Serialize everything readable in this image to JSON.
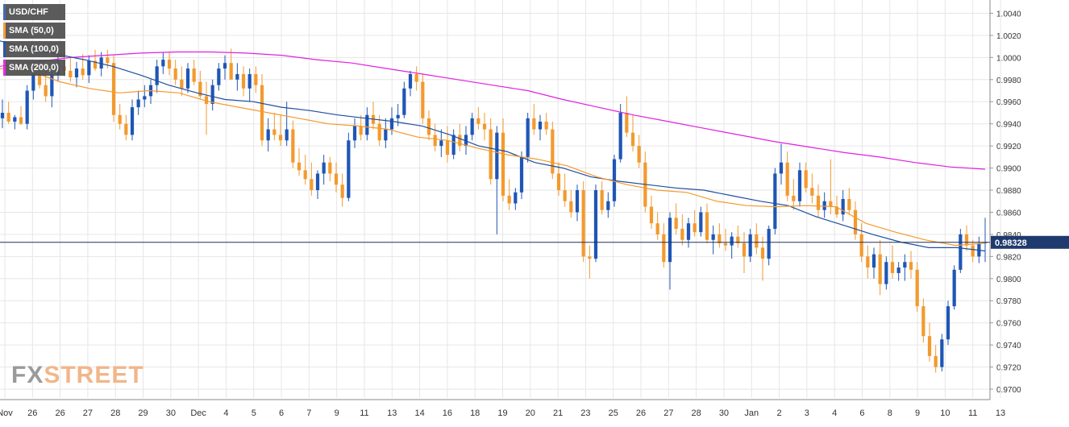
{
  "watermark": {
    "part1": "FX",
    "part2": "STREET"
  },
  "legend": [
    {
      "label": "USD/CHF",
      "color": "#3a5fb0"
    },
    {
      "label": "SMA (50,0)",
      "color": "#f39a2e"
    },
    {
      "label": "SMA (100,0)",
      "color": "#1d4e9e"
    },
    {
      "label": "SMA (200,0)",
      "color": "#e020e0"
    }
  ],
  "colors": {
    "bull": "#1f56b5",
    "bear": "#f39a2e",
    "sma50": "#f39a2e",
    "sma100": "#1d4e9e",
    "sma200": "#e020e0",
    "price_line": "#1c2f5a",
    "grid": "#e6e6e6"
  },
  "chart_data": {
    "type": "candlestick",
    "title": "USD/CHF",
    "current_price": "0.98328",
    "ylim": [
      0.9692,
      1.0052
    ],
    "y_ticks": [
      "1.0040",
      "1.0020",
      "1.0000",
      "0.9980",
      "0.9960",
      "0.9940",
      "0.9920",
      "0.9900",
      "0.9880",
      "0.9860",
      "0.9840",
      "0.9820",
      "0.9800",
      "0.9780",
      "0.9760",
      "0.9740",
      "0.9720",
      "0.9700"
    ],
    "x_ticks": [
      "Nov",
      "26",
      "26",
      "27",
      "28",
      "29",
      "30",
      "Dec",
      "4",
      "5",
      "6",
      "7",
      "9",
      "11",
      "13",
      "14",
      "16",
      "18",
      "19",
      "20",
      "21",
      "23",
      "25",
      "26",
      "27",
      "28",
      "30",
      "Jan",
      "2",
      "3",
      "4",
      "6",
      "8",
      "9",
      "10",
      "11",
      "13"
    ],
    "grid": true,
    "candles_ohlc": [
      [
        0.9945,
        0.9962,
        0.9936,
        0.995
      ],
      [
        0.995,
        0.996,
        0.994,
        0.9942
      ],
      [
        0.9942,
        0.9948,
        0.9935,
        0.9946
      ],
      [
        0.9946,
        0.9956,
        0.9939,
        0.994
      ],
      [
        0.994,
        0.9975,
        0.9935,
        0.997
      ],
      [
        0.997,
        0.999,
        0.9962,
        0.9985
      ],
      [
        0.9985,
        0.9996,
        0.9972,
        0.9975
      ],
      [
        0.9975,
        0.9988,
        0.996,
        0.9965
      ],
      [
        0.9965,
        0.999,
        0.9955,
        0.9985
      ],
      [
        0.9985,
        1.0002,
        0.9978,
        0.9992
      ],
      [
        0.9992,
        1.0005,
        0.9983,
        0.9988
      ],
      [
        0.9988,
        1.0,
        0.9978,
        0.9982
      ],
      [
        0.9982,
        0.9996,
        0.9973,
        0.999
      ],
      [
        0.999,
        1.0003,
        0.998,
        0.9984
      ],
      [
        0.9984,
        1.0002,
        0.9977,
        0.9997
      ],
      [
        0.9997,
        1.0007,
        0.9988,
        0.999
      ],
      [
        0.999,
        1.0005,
        0.9983,
        1.0
      ],
      [
        1.0,
        1.0007,
        0.999,
        0.9995
      ],
      [
        0.9995,
        1.0002,
        0.9942,
        0.9948
      ],
      [
        0.9948,
        0.9958,
        0.9935,
        0.994
      ],
      [
        0.994,
        0.9948,
        0.9925,
        0.993
      ],
      [
        0.993,
        0.9962,
        0.9925,
        0.9955
      ],
      [
        0.9955,
        0.997,
        0.9948,
        0.9962
      ],
      [
        0.9962,
        0.9975,
        0.9955,
        0.9965
      ],
      [
        0.9965,
        0.998,
        0.9958,
        0.9975
      ],
      [
        0.9975,
        0.9998,
        0.9968,
        0.9992
      ],
      [
        0.9992,
        1.0005,
        0.9985,
        0.9998
      ],
      [
        0.9998,
        1.0005,
        0.9984,
        0.999
      ],
      [
        0.999,
        0.9998,
        0.9975,
        0.998
      ],
      [
        0.998,
        0.9992,
        0.9965,
        0.9972
      ],
      [
        0.9972,
        0.9995,
        0.9968,
        0.999
      ],
      [
        0.999,
        0.9998,
        0.9975,
        0.9978
      ],
      [
        0.9978,
        0.9988,
        0.9962,
        0.9965
      ],
      [
        0.9965,
        0.9978,
        0.993,
        0.9958
      ],
      [
        0.9958,
        0.998,
        0.9952,
        0.9975
      ],
      [
        0.9975,
        0.9995,
        0.997,
        0.999
      ],
      [
        0.999,
        1.0002,
        0.998,
        0.9995
      ],
      [
        0.9995,
        1.0008,
        0.9985,
        0.998
      ],
      [
        0.998,
        0.9995,
        0.997,
        0.9985
      ],
      [
        0.9985,
        0.9992,
        0.9965,
        0.9972
      ],
      [
        0.9972,
        0.999,
        0.996,
        0.9985
      ],
      [
        0.9985,
        0.9992,
        0.9968,
        0.9975
      ],
      [
        0.9975,
        0.9985,
        0.992,
        0.9925
      ],
      [
        0.9925,
        0.9945,
        0.9915,
        0.9935
      ],
      [
        0.9935,
        0.995,
        0.9925,
        0.993
      ],
      [
        0.993,
        0.9948,
        0.992,
        0.9925
      ],
      [
        0.9925,
        0.996,
        0.992,
        0.9935
      ],
      [
        0.9935,
        0.9943,
        0.99,
        0.9905
      ],
      [
        0.9905,
        0.9918,
        0.9893,
        0.9898
      ],
      [
        0.9898,
        0.9912,
        0.9885,
        0.989
      ],
      [
        0.989,
        0.9905,
        0.9875,
        0.988
      ],
      [
        0.988,
        0.9898,
        0.9872,
        0.9895
      ],
      [
        0.9895,
        0.9912,
        0.9885,
        0.9905
      ],
      [
        0.9905,
        0.991,
        0.9888,
        0.9895
      ],
      [
        0.9895,
        0.9905,
        0.9878,
        0.9885
      ],
      [
        0.9885,
        0.9895,
        0.9865,
        0.9873
      ],
      [
        0.9873,
        0.9932,
        0.987,
        0.9925
      ],
      [
        0.9925,
        0.9945,
        0.9918,
        0.9938
      ],
      [
        0.9938,
        0.9948,
        0.9925,
        0.993
      ],
      [
        0.993,
        0.9955,
        0.9925,
        0.9948
      ],
      [
        0.9948,
        0.996,
        0.9935,
        0.994
      ],
      [
        0.994,
        0.9948,
        0.992,
        0.9925
      ],
      [
        0.9925,
        0.9945,
        0.9918,
        0.9935
      ],
      [
        0.9935,
        0.9955,
        0.993,
        0.9945
      ],
      [
        0.9945,
        0.9958,
        0.9938,
        0.9948
      ],
      [
        0.9948,
        0.9978,
        0.9945,
        0.9972
      ],
      [
        0.9972,
        0.9988,
        0.9965,
        0.9985
      ],
      [
        0.9985,
        0.9992,
        0.997,
        0.9978
      ],
      [
        0.9978,
        0.9985,
        0.994,
        0.9945
      ],
      [
        0.9945,
        0.9952,
        0.9925,
        0.993
      ],
      [
        0.993,
        0.994,
        0.9915,
        0.992
      ],
      [
        0.992,
        0.9935,
        0.991,
        0.9925
      ],
      [
        0.9925,
        0.9938,
        0.9905,
        0.9912
      ],
      [
        0.9912,
        0.9935,
        0.9908,
        0.993
      ],
      [
        0.993,
        0.994,
        0.9915,
        0.992
      ],
      [
        0.992,
        0.9938,
        0.9912,
        0.993
      ],
      [
        0.993,
        0.995,
        0.9925,
        0.9945
      ],
      [
        0.9945,
        0.9955,
        0.9935,
        0.994
      ],
      [
        0.994,
        0.995,
        0.9925,
        0.9935
      ],
      [
        0.9935,
        0.9945,
        0.9885,
        0.989
      ],
      [
        0.989,
        0.9938,
        0.984,
        0.9932
      ],
      [
        0.9932,
        0.9945,
        0.987,
        0.9875
      ],
      [
        0.9875,
        0.989,
        0.9862,
        0.9868
      ],
      [
        0.9868,
        0.9882,
        0.9862,
        0.9878
      ],
      [
        0.9878,
        0.9915,
        0.9872,
        0.991
      ],
      [
        0.991,
        0.995,
        0.9905,
        0.9945
      ],
      [
        0.9945,
        0.9958,
        0.993,
        0.9935
      ],
      [
        0.9935,
        0.9948,
        0.9925,
        0.9942
      ],
      [
        0.9942,
        0.995,
        0.993,
        0.9935
      ],
      [
        0.9935,
        0.9942,
        0.989,
        0.9895
      ],
      [
        0.9895,
        0.9905,
        0.9875,
        0.988
      ],
      [
        0.988,
        0.9895,
        0.9865,
        0.987
      ],
      [
        0.987,
        0.988,
        0.9855,
        0.986
      ],
      [
        0.986,
        0.9885,
        0.9852,
        0.988
      ],
      [
        0.988,
        0.9888,
        0.9815,
        0.982
      ],
      [
        0.982,
        0.983,
        0.98,
        0.9818
      ],
      [
        0.9818,
        0.9885,
        0.9815,
        0.988
      ],
      [
        0.988,
        0.9888,
        0.9858,
        0.9862
      ],
      [
        0.9862,
        0.9878,
        0.9855,
        0.987
      ],
      [
        0.987,
        0.9912,
        0.9865,
        0.9908
      ],
      [
        0.9908,
        0.9958,
        0.9905,
        0.995
      ],
      [
        0.995,
        0.9965,
        0.9928,
        0.9932
      ],
      [
        0.9932,
        0.9948,
        0.9915,
        0.992
      ],
      [
        0.992,
        0.993,
        0.99,
        0.9905
      ],
      [
        0.9905,
        0.9915,
        0.986,
        0.9865
      ],
      [
        0.9865,
        0.9875,
        0.9845,
        0.985
      ],
      [
        0.985,
        0.986,
        0.9835,
        0.984
      ],
      [
        0.984,
        0.985,
        0.981,
        0.9815
      ],
      [
        0.9815,
        0.986,
        0.979,
        0.9855
      ],
      [
        0.9855,
        0.9868,
        0.984,
        0.9845
      ],
      [
        0.9845,
        0.9858,
        0.983,
        0.9835
      ],
      [
        0.9835,
        0.9855,
        0.9828,
        0.985
      ],
      [
        0.985,
        0.9862,
        0.9838,
        0.9842
      ],
      [
        0.9842,
        0.9865,
        0.9838,
        0.986
      ],
      [
        0.986,
        0.9868,
        0.9832,
        0.9835
      ],
      [
        0.9835,
        0.9848,
        0.9822,
        0.984
      ],
      [
        0.984,
        0.985,
        0.9828,
        0.9832
      ],
      [
        0.9832,
        0.9845,
        0.9825,
        0.983
      ],
      [
        0.983,
        0.9842,
        0.9818,
        0.9838
      ],
      [
        0.9838,
        0.9848,
        0.9828,
        0.9832
      ],
      [
        0.9832,
        0.9842,
        0.9805,
        0.982
      ],
      [
        0.982,
        0.9845,
        0.9815,
        0.984
      ],
      [
        0.984,
        0.985,
        0.9822,
        0.9828
      ],
      [
        0.9828,
        0.9838,
        0.9798,
        0.9818
      ],
      [
        0.9818,
        0.9848,
        0.9812,
        0.9845
      ],
      [
        0.9845,
        0.99,
        0.984,
        0.9895
      ],
      [
        0.9895,
        0.9922,
        0.9885,
        0.9905
      ],
      [
        0.9905,
        0.9915,
        0.987,
        0.9875
      ],
      [
        0.9875,
        0.989,
        0.9862,
        0.987
      ],
      [
        0.987,
        0.9905,
        0.9865,
        0.9898
      ],
      [
        0.9898,
        0.9905,
        0.9878,
        0.9882
      ],
      [
        0.9882,
        0.9895,
        0.9868,
        0.9875
      ],
      [
        0.9875,
        0.9885,
        0.9855,
        0.9862
      ],
      [
        0.9862,
        0.9878,
        0.9855,
        0.987
      ],
      [
        0.987,
        0.9908,
        0.9858,
        0.9865
      ],
      [
        0.9865,
        0.9875,
        0.9855,
        0.9858
      ],
      [
        0.9858,
        0.988,
        0.9852,
        0.9872
      ],
      [
        0.9872,
        0.9882,
        0.9858,
        0.9862
      ],
      [
        0.9862,
        0.987,
        0.9835,
        0.984
      ],
      [
        0.984,
        0.985,
        0.9815,
        0.982
      ],
      [
        0.982,
        0.983,
        0.98,
        0.981
      ],
      [
        0.981,
        0.9828,
        0.98,
        0.9822
      ],
      [
        0.9822,
        0.9835,
        0.9785,
        0.9795
      ],
      [
        0.9795,
        0.982,
        0.979,
        0.9815
      ],
      [
        0.9815,
        0.983,
        0.98,
        0.9805
      ],
      [
        0.9805,
        0.9815,
        0.9798,
        0.981
      ],
      [
        0.981,
        0.9822,
        0.9798,
        0.9815
      ],
      [
        0.9815,
        0.9825,
        0.98,
        0.9808
      ],
      [
        0.9808,
        0.9815,
        0.977,
        0.9775
      ],
      [
        0.9775,
        0.9782,
        0.9742,
        0.9748
      ],
      [
        0.9748,
        0.976,
        0.9725,
        0.973
      ],
      [
        0.973,
        0.974,
        0.9715,
        0.972
      ],
      [
        0.972,
        0.975,
        0.9716,
        0.9745
      ],
      [
        0.9745,
        0.978,
        0.974,
        0.9775
      ],
      [
        0.9775,
        0.9812,
        0.9772,
        0.9808
      ],
      [
        0.9808,
        0.9845,
        0.9805,
        0.984
      ],
      [
        0.984,
        0.9848,
        0.9825,
        0.983
      ],
      [
        0.983,
        0.9835,
        0.9815,
        0.982
      ],
      [
        0.982,
        0.9838,
        0.9814,
        0.9832
      ],
      [
        0.9832,
        0.9855,
        0.9815,
        0.98328
      ]
    ],
    "sma50": [
      0.999,
      0.9988,
      0.9978,
      0.9972,
      0.9968,
      0.997,
      0.9968,
      0.996,
      0.9955,
      0.995,
      0.9945,
      0.994,
      0.9938,
      0.9935,
      0.9928,
      0.9925,
      0.9918,
      0.9912,
      0.9908,
      0.9902,
      0.9892,
      0.9885,
      0.988,
      0.9878,
      0.987,
      0.9866,
      0.9865,
      0.9866,
      0.9865,
      0.985,
      0.9842,
      0.9835,
      0.983,
      0.9832
    ],
    "sma100": [
      1.0015,
      1.0008,
      1.0003,
      0.9998,
      0.9992,
      0.9984,
      0.9975,
      0.9968,
      0.9962,
      0.996,
      0.9955,
      0.9952,
      0.9948,
      0.9945,
      0.9942,
      0.9938,
      0.993,
      0.992,
      0.9915,
      0.9905,
      0.99,
      0.9892,
      0.9888,
      0.9885,
      0.9882,
      0.988,
      0.9875,
      0.987,
      0.9866,
      0.9856,
      0.9848,
      0.984,
      0.9833,
      0.9828,
      0.9828,
      0.9825
    ],
    "sma200": [
      0.9992,
      0.9996,
      1.0,
      1.0002,
      1.0004,
      1.0005,
      1.0005,
      1.0004,
      1.0002,
      0.9998,
      0.9995,
      0.999,
      0.9985,
      0.998,
      0.9975,
      0.997,
      0.9962,
      0.9955,
      0.9948,
      0.9942,
      0.9936,
      0.993,
      0.9924,
      0.9919,
      0.9914,
      0.991,
      0.9905,
      0.9901,
      0.9899
    ]
  }
}
